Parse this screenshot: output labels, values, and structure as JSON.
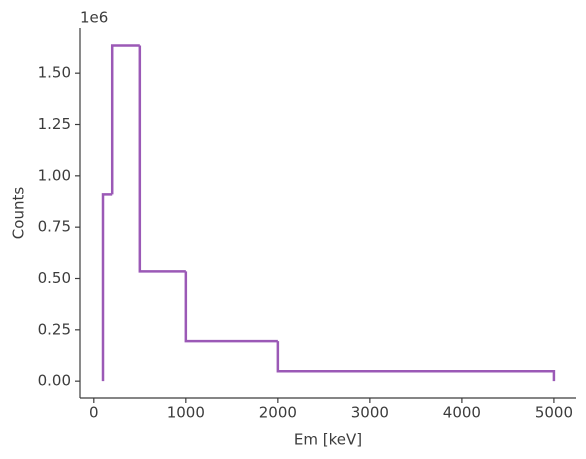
{
  "chart_data": {
    "type": "histogram",
    "xlabel": "Em [keV]",
    "ylabel": "Counts",
    "y_offset_label": "1e6",
    "bins": [
      100,
      200,
      500,
      1000,
      2000,
      5000
    ],
    "values": [
      0.91,
      1.635,
      0.535,
      0.195,
      0.048
    ],
    "color": "#9b59b6",
    "xlim": [
      -150,
      5240
    ],
    "xticks": [
      0,
      1000,
      2000,
      3000,
      4000,
      5000
    ],
    "ylim": [
      -0.082,
      1.72
    ],
    "yticks": [
      {
        "value": 0,
        "label": "0.00"
      },
      {
        "value": 0.25,
        "label": "0.25"
      },
      {
        "value": 0.5,
        "label": "0.50"
      },
      {
        "value": 0.75,
        "label": "0.75"
      },
      {
        "value": 1,
        "label": "1.00"
      },
      {
        "value": 1.25,
        "label": "1.25"
      },
      {
        "value": 1.5,
        "label": "1.50"
      }
    ],
    "grid": false
  }
}
